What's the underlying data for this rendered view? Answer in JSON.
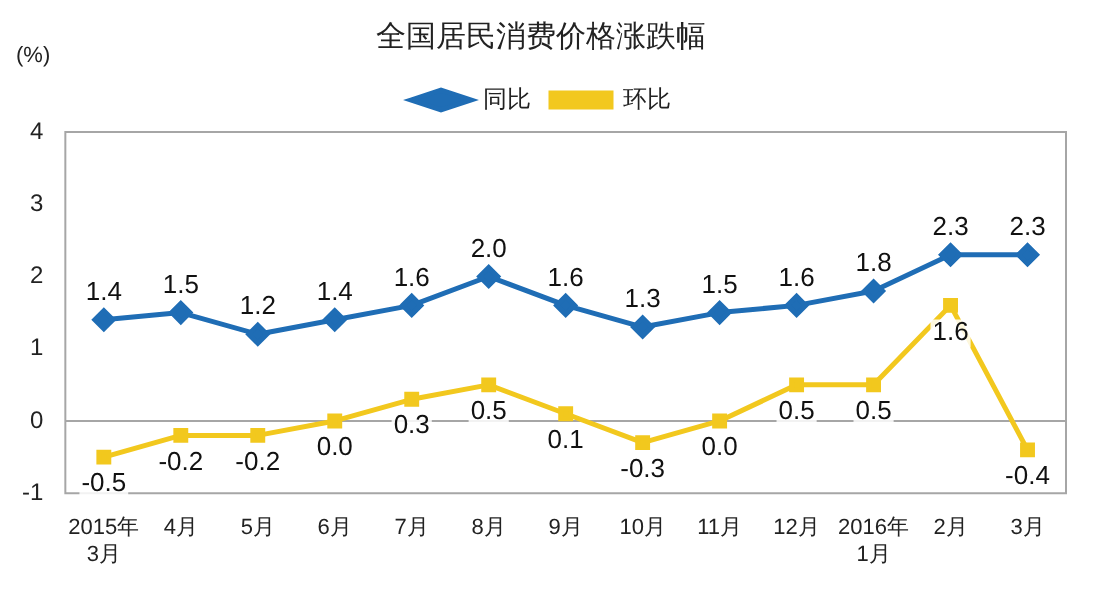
{
  "chart_data": {
    "type": "line",
    "title": "全国居民消费价格涨跌幅",
    "ylabel": "(%)",
    "categories": [
      "2015年\n3月",
      "4月",
      "5月",
      "6月",
      "7月",
      "8月",
      "9月",
      "10月",
      "11月",
      "12月",
      "2016年\n1月",
      "2月",
      "3月"
    ],
    "series": [
      {
        "name": "同比",
        "color": "#1f6db5",
        "marker": "diamond",
        "values": [
          1.4,
          1.5,
          1.2,
          1.4,
          1.6,
          2.0,
          1.6,
          1.3,
          1.5,
          1.6,
          1.8,
          2.3,
          2.3
        ],
        "value_labels": [
          "1.4",
          "1.5",
          "1.2",
          "1.4",
          "1.6",
          "2.0",
          "1.6",
          "1.3",
          "1.5",
          "1.6",
          "1.8",
          "2.3",
          "2.3"
        ]
      },
      {
        "name": "环比",
        "color": "#f2c81e",
        "marker": "square",
        "values": [
          -0.5,
          -0.2,
          -0.2,
          0.0,
          0.3,
          0.5,
          0.1,
          -0.3,
          0.0,
          0.5,
          0.5,
          1.6,
          -0.4
        ],
        "value_labels": [
          "-0.5",
          "-0.2",
          "-0.2",
          "0.0",
          "0.3",
          "0.5",
          "0.1",
          "-0.3",
          "0.0",
          "0.5",
          "0.5",
          "1.6",
          "-0.4"
        ]
      }
    ],
    "ylim": [
      -1,
      4
    ],
    "yticks": [
      -1,
      0,
      1,
      2,
      3,
      4
    ],
    "grid": false,
    "legend": "top",
    "ref_lines": [
      {
        "axis": "y",
        "value": 0,
        "color": "#a6a6a6"
      }
    ]
  }
}
